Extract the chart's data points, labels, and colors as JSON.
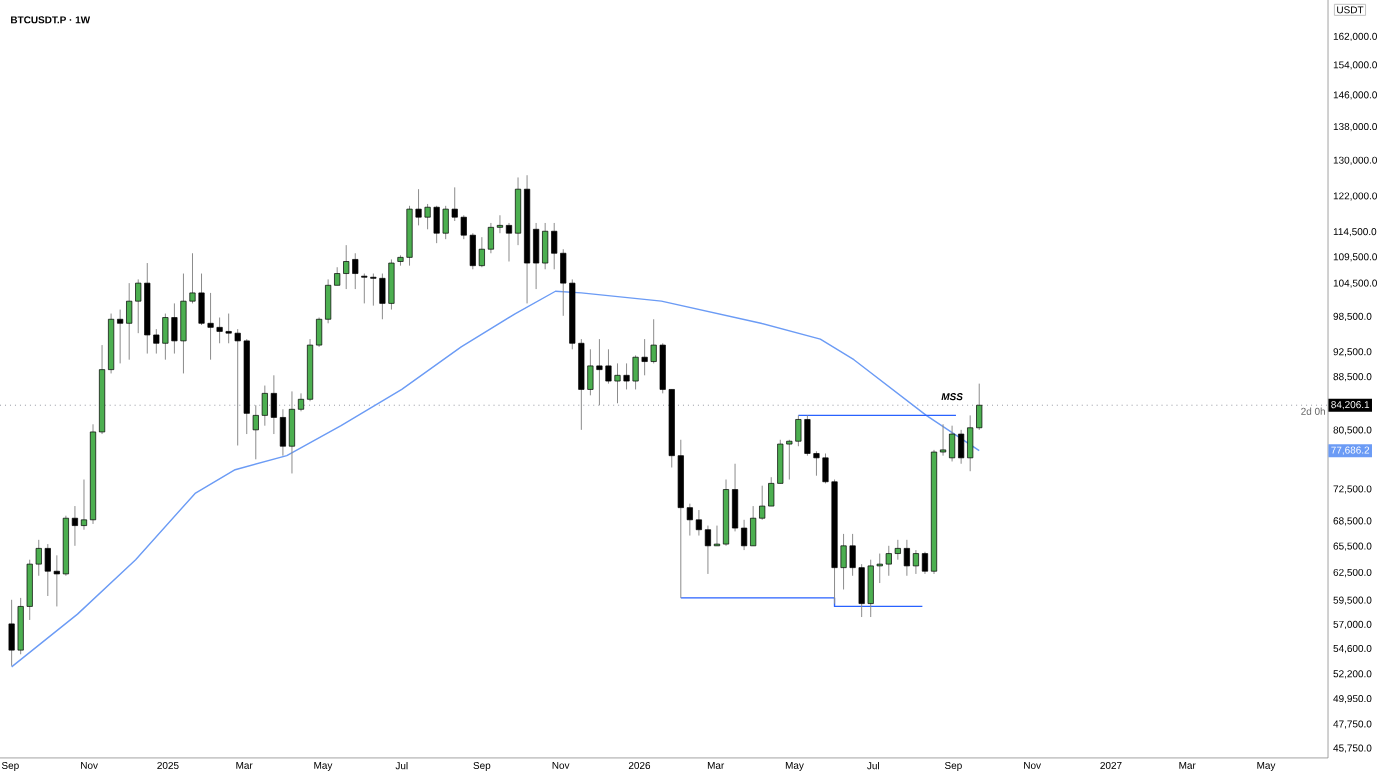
{
  "chart_data": {
    "type": "candlestick",
    "title": "BTCUSDT.P · 1W",
    "ylabel": "USDT",
    "log": "y",
    "x": [
      "2024-09-02",
      "2024-09-09",
      "2024-09-16",
      "2024-09-23",
      "2024-09-30",
      "2024-10-07",
      "2024-10-14",
      "2024-10-21",
      "2024-10-28",
      "2024-11-04",
      "2024-11-11",
      "2024-11-18",
      "2024-11-25",
      "2024-12-02",
      "2024-12-09",
      "2024-12-16",
      "2024-12-23",
      "2024-12-30",
      "2025-01-06",
      "2025-01-13",
      "2025-01-20",
      "2025-01-27",
      "2025-02-03",
      "2025-02-10",
      "2025-02-17",
      "2025-02-24",
      "2025-03-03",
      "2025-03-10",
      "2025-03-17",
      "2025-03-24",
      "2025-03-31",
      "2025-04-07",
      "2025-04-14",
      "2025-04-21",
      "2025-04-28",
      "2025-05-05",
      "2025-05-12",
      "2025-05-19",
      "2025-05-26",
      "2025-06-02",
      "2025-06-09",
      "2025-06-16",
      "2025-06-23",
      "2025-06-30",
      "2025-07-07",
      "2025-07-14",
      "2025-07-21",
      "2025-07-28",
      "2025-08-04",
      "2025-08-11",
      "2025-08-18",
      "2025-08-25",
      "2025-09-01",
      "2025-09-08",
      "2025-09-15",
      "2025-09-22",
      "2025-09-29",
      "2025-10-06",
      "2025-10-13",
      "2025-10-20",
      "2025-10-27",
      "2025-11-03",
      "2025-11-10",
      "2025-11-17",
      "2025-11-24",
      "2025-12-01",
      "2025-12-08",
      "2025-12-15",
      "2025-12-22",
      "2025-12-29",
      "2026-01-05",
      "2026-01-12",
      "2026-01-19",
      "2026-01-26",
      "2026-02-02",
      "2026-02-09",
      "2026-02-16",
      "2026-02-23",
      "2026-03-02",
      "2026-03-09",
      "2026-03-16",
      "2026-03-23",
      "2026-03-30",
      "2026-04-06",
      "2026-04-13",
      "2026-04-20",
      "2026-04-27",
      "2026-05-04",
      "2026-05-11",
      "2026-05-18",
      "2026-05-25",
      "2026-06-01",
      "2026-06-08",
      "2026-06-15",
      "2026-06-22",
      "2026-06-29",
      "2026-07-06",
      "2026-07-13",
      "2026-07-20",
      "2026-07-27",
      "2026-08-03",
      "2026-08-10",
      "2026-08-17",
      "2026-08-24",
      "2026-08-31",
      "2026-09-07",
      "2026-09-14",
      "2026-09-21"
    ],
    "ohlc": [
      [
        57100,
        59600,
        53000,
        54500
      ],
      [
        54500,
        59800,
        54100,
        58900
      ],
      [
        58900,
        64000,
        57500,
        63500
      ],
      [
        63500,
        66300,
        62200,
        65300
      ],
      [
        65300,
        65800,
        60000,
        62700
      ],
      [
        62700,
        64500,
        58900,
        62400
      ],
      [
        62400,
        69200,
        62200,
        68900
      ],
      [
        68900,
        70400,
        65600,
        68000
      ],
      [
        68000,
        73800,
        67500,
        68700
      ],
      [
        68700,
        81400,
        68200,
        80300
      ],
      [
        80300,
        93700,
        80000,
        89700
      ],
      [
        89700,
        99100,
        89100,
        98100
      ],
      [
        98100,
        99800,
        90700,
        97400
      ],
      [
        97400,
        104600,
        91300,
        101300
      ],
      [
        101300,
        105300,
        95700,
        104600
      ],
      [
        104600,
        108400,
        92300,
        95400
      ],
      [
        95400,
        96400,
        92300,
        94000
      ],
      [
        94000,
        99100,
        91300,
        98400
      ],
      [
        98400,
        100900,
        92300,
        94400
      ],
      [
        94400,
        106400,
        89100,
        101300
      ],
      [
        101300,
        110300,
        100900,
        102800
      ],
      [
        102800,
        106400,
        97100,
        97400
      ],
      [
        97400,
        102800,
        91300,
        96700
      ],
      [
        96700,
        98400,
        94000,
        96000
      ],
      [
        96000,
        99100,
        94000,
        95700
      ],
      [
        95700,
        96400,
        78400,
        94400
      ],
      [
        94400,
        94700,
        80000,
        83000
      ],
      [
        80600,
        84200,
        76500,
        82700
      ],
      [
        82700,
        87200,
        81200,
        86000
      ],
      [
        86000,
        88800,
        80000,
        82400
      ],
      [
        82400,
        83600,
        77000,
        78300
      ],
      [
        78300,
        86300,
        74600,
        83600
      ],
      [
        83600,
        86000,
        83300,
        85100
      ],
      [
        85100,
        94700,
        84800,
        93700
      ],
      [
        93700,
        98400,
        93400,
        98100
      ],
      [
        98100,
        105300,
        97400,
        104200
      ],
      [
        104200,
        107600,
        104200,
        106400
      ],
      [
        106400,
        111900,
        103500,
        108700
      ],
      [
        109100,
        110300,
        103500,
        106400
      ],
      [
        105900,
        106400,
        100900,
        105700
      ],
      [
        105700,
        106400,
        100500,
        105500
      ],
      [
        105500,
        106400,
        98100,
        100900
      ],
      [
        100900,
        109100,
        99800,
        108400
      ],
      [
        108700,
        109900,
        107900,
        109500
      ],
      [
        109500,
        120000,
        107900,
        119300
      ],
      [
        119300,
        123600,
        115900,
        117600
      ],
      [
        117600,
        120400,
        115100,
        119700
      ],
      [
        119700,
        120000,
        112300,
        114300
      ],
      [
        114300,
        120000,
        113100,
        119300
      ],
      [
        119300,
        124000,
        116800,
        117600
      ],
      [
        117600,
        118000,
        113100,
        113900
      ],
      [
        113900,
        114300,
        107200,
        107900
      ],
      [
        107900,
        113500,
        107600,
        111100
      ],
      [
        111100,
        116400,
        110300,
        115500
      ],
      [
        115500,
        118000,
        114300,
        115900
      ],
      [
        115900,
        116400,
        108700,
        114300
      ],
      [
        114300,
        126200,
        111900,
        123600
      ],
      [
        123600,
        126700,
        100900,
        108400
      ],
      [
        115100,
        116400,
        103500,
        108400
      ],
      [
        108400,
        116400,
        107200,
        114700
      ],
      [
        114700,
        116400,
        107200,
        110300
      ],
      [
        110300,
        111100,
        98700,
        104600
      ],
      [
        104600,
        105300,
        93000,
        94000
      ],
      [
        94000,
        94700,
        80600,
        86600
      ],
      [
        86600,
        93000,
        85700,
        90300
      ],
      [
        90300,
        94700,
        84200,
        89700
      ],
      [
        90300,
        93000,
        87500,
        87900
      ],
      [
        87900,
        90700,
        84500,
        88800
      ],
      [
        88800,
        90700,
        86600,
        87900
      ],
      [
        87900,
        92000,
        86600,
        91700
      ],
      [
        91700,
        94700,
        88800,
        91000
      ],
      [
        91000,
        98100,
        90700,
        93700
      ],
      [
        93700,
        94000,
        86000,
        86600
      ],
      [
        86600,
        86600,
        75400,
        77000
      ],
      [
        77000,
        79200,
        59800,
        70200
      ],
      [
        70200,
        70700,
        66800,
        68700
      ],
      [
        68700,
        69900,
        66800,
        67500
      ],
      [
        67500,
        68000,
        62400,
        65600
      ],
      [
        65600,
        68000,
        65600,
        65800
      ],
      [
        65800,
        73800,
        65600,
        72500
      ],
      [
        72500,
        75900,
        67300,
        67700
      ],
      [
        67700,
        68700,
        65100,
        65600
      ],
      [
        65600,
        70400,
        65600,
        68900
      ],
      [
        68900,
        73000,
        68700,
        70400
      ],
      [
        70400,
        74100,
        70400,
        73300
      ],
      [
        73300,
        79200,
        73300,
        78600
      ],
      [
        78600,
        79200,
        73800,
        79000
      ],
      [
        79000,
        82700,
        78300,
        82100
      ],
      [
        82100,
        82700,
        77000,
        77300
      ],
      [
        77300,
        77600,
        74300,
        76700
      ],
      [
        76700,
        77300,
        73300,
        73500
      ],
      [
        73500,
        73800,
        59200,
        63100
      ],
      [
        63100,
        67000,
        60700,
        65600
      ],
      [
        65600,
        67000,
        62200,
        63100
      ],
      [
        63100,
        63500,
        57800,
        59200
      ],
      [
        59200,
        64000,
        57800,
        63300
      ],
      [
        63300,
        64700,
        61400,
        63500
      ],
      [
        63500,
        65600,
        62200,
        64700
      ],
      [
        64700,
        66300,
        64000,
        65300
      ],
      [
        65300,
        66300,
        62200,
        63300
      ],
      [
        63300,
        65100,
        62400,
        64700
      ],
      [
        64700,
        64900,
        62400,
        62700
      ],
      [
        62700,
        77800,
        62400,
        77500
      ],
      [
        77500,
        81400,
        77000,
        77800
      ],
      [
        76700,
        81200,
        76200,
        80000
      ],
      [
        80000,
        80600,
        75900,
        76700
      ],
      [
        76700,
        82700,
        74900,
        80900
      ],
      [
        80900,
        87500,
        80600,
        84206.1
      ]
    ],
    "series": [
      {
        "type": "line",
        "color": "#6b9bf5",
        "x": [
          "2024-09-02",
          "2024-10-23",
          "2024-12-07",
          "2025-01-22",
          "2025-02-22",
          "2025-04-03",
          "2025-05-15",
          "2025-07-01",
          "2025-08-16",
          "2025-09-27",
          "2025-10-28",
          "2025-11-17",
          "2026-01-18",
          "2026-04-05",
          "2026-05-21",
          "2026-06-16",
          "2026-08-11",
          "2026-09-21"
        ],
        "values": [
          52900,
          58100,
          64000,
          72000,
          75100,
          77000,
          81200,
          86600,
          93400,
          99100,
          103100,
          102800,
          101300,
          97400,
          94700,
          91300,
          82700,
          77686.2
        ]
      },
      {
        "type": "line",
        "color": "#2962ff",
        "x": [
          "2026-05-04",
          "2026-09-03"
        ],
        "values": [
          82700,
          82700
        ]
      },
      {
        "type": "line",
        "color": "#2962ff",
        "x": [
          "2026-02-02",
          "2026-06-01",
          "2026-06-01",
          "2026-08-08"
        ],
        "values": [
          59800,
          59800,
          58900,
          58900
        ]
      }
    ],
    "xlim": [
      "2024-08-24",
      "2027-06-18"
    ],
    "ylim": [
      45000,
      173000
    ],
    "xticks": [
      {
        "value": "2024-09-01",
        "label": "Sep"
      },
      {
        "value": "2024-11-01",
        "label": "Nov"
      },
      {
        "value": "2025-01-01",
        "label": "2025"
      },
      {
        "value": "2025-03-01",
        "label": "Mar"
      },
      {
        "value": "2025-05-01",
        "label": "May"
      },
      {
        "value": "2025-07-01",
        "label": "Jul"
      },
      {
        "value": "2025-09-01",
        "label": "Sep"
      },
      {
        "value": "2025-11-01",
        "label": "Nov"
      },
      {
        "value": "2026-01-01",
        "label": "2026"
      },
      {
        "value": "2026-03-01",
        "label": "Mar"
      },
      {
        "value": "2026-05-01",
        "label": "May"
      },
      {
        "value": "2026-07-01",
        "label": "Jul"
      },
      {
        "value": "2026-09-01",
        "label": "Sep"
      },
      {
        "value": "2026-11-01",
        "label": "Nov"
      },
      {
        "value": "2027-01-01",
        "label": "2027"
      },
      {
        "value": "2027-03-01",
        "label": "Mar"
      },
      {
        "value": "2027-05-01",
        "label": "May"
      }
    ],
    "yticks": [
      {
        "value": 162000,
        "label": "162,000.0"
      },
      {
        "value": 154000,
        "label": "154,000.0"
      },
      {
        "value": 146000,
        "label": "146,000.0"
      },
      {
        "value": 138000,
        "label": "138,000.0"
      },
      {
        "value": 130000,
        "label": "130,000.0"
      },
      {
        "value": 122000,
        "label": "122,000.0"
      },
      {
        "value": 114500,
        "label": "114,500.0"
      },
      {
        "value": 109500,
        "label": "109,500.0"
      },
      {
        "value": 104500,
        "label": "104,500.0"
      },
      {
        "value": 98500,
        "label": "98,500.0"
      },
      {
        "value": 92500,
        "label": "92,500.0"
      },
      {
        "value": 88500,
        "label": "88,500.0"
      },
      {
        "value": 80500,
        "label": "80,500.0"
      },
      {
        "value": 72500,
        "label": "72,500.0"
      },
      {
        "value": 68500,
        "label": "68,500.0"
      },
      {
        "value": 65500,
        "label": "65,500.0"
      },
      {
        "value": 62500,
        "label": "62,500.0"
      },
      {
        "value": 59500,
        "label": "59,500.0"
      },
      {
        "value": 57000,
        "label": "57,000.0"
      },
      {
        "value": 54600,
        "label": "54,600.0"
      },
      {
        "value": 52200,
        "label": "52,200.0"
      },
      {
        "value": 49950,
        "label": "49,950.0"
      },
      {
        "value": 47750,
        "label": "47,750.0"
      },
      {
        "value": 45750,
        "label": "45,750.0"
      }
    ],
    "ref_lines": [
      {
        "axis": "y",
        "value": 84206.1,
        "label": "84,206.1",
        "color": "#9598a1",
        "line_style": "dotted"
      }
    ],
    "annotations": [
      {
        "text": "MSS",
        "x": "2026-08-31",
        "y": 85500
      },
      "2d 0h",
      "77,686.2"
    ]
  }
}
